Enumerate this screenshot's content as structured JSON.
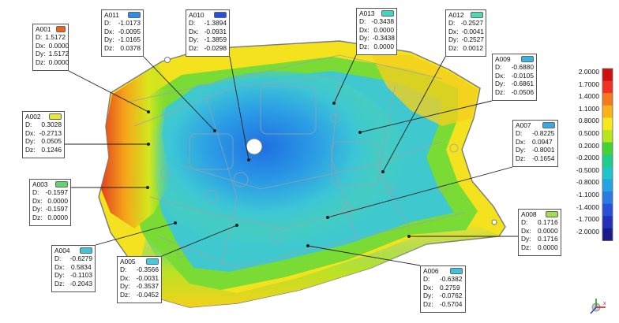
{
  "scale": {
    "labels": [
      "2.0000",
      "1.7000",
      "1.4000",
      "1.1000",
      "0.8000",
      "0.5000",
      "0.2000",
      "-0.2000",
      "-0.5000",
      "-0.8000",
      "-1.1000",
      "-1.4000",
      "-1.7000",
      "-2.0000"
    ],
    "colors": [
      "#cc1111",
      "#ee3322",
      "#f57a1f",
      "#f9b21a",
      "#f6e81a",
      "#b9e51c",
      "#44d133",
      "#1fce8a",
      "#1ec6c9",
      "#22a5e0",
      "#2a7ce3",
      "#2a4fd8",
      "#2330b8",
      "#1a1a88"
    ]
  },
  "annotations": [
    {
      "id": "A001",
      "swatch": "#e8641c",
      "values": [
        [
          "D:",
          "1.5172"
        ],
        [
          "Dx:",
          "0.0000"
        ],
        [
          "Dy:",
          "1.5172"
        ],
        [
          "Dz:",
          "0.0000"
        ]
      ]
    },
    {
      "id": "A002",
      "swatch": "#e6e832",
      "values": [
        [
          "D:",
          "0.3028"
        ],
        [
          "Dx:",
          "-0.2713"
        ],
        [
          "Dy:",
          "0.0505"
        ],
        [
          "Dz:",
          "0.1246"
        ]
      ]
    },
    {
      "id": "A003",
      "swatch": "#5ed66a",
      "values": [
        [
          "D:",
          "-0.1597"
        ],
        [
          "Dx:",
          "0.0000"
        ],
        [
          "Dy:",
          "-0.1597"
        ],
        [
          "Dz:",
          "0.0000"
        ]
      ]
    },
    {
      "id": "A004",
      "swatch": "#3bc7d8",
      "values": [
        [
          "D:",
          "-0.6279"
        ],
        [
          "Dx:",
          "0.5834"
        ],
        [
          "Dy:",
          "-0.1103"
        ],
        [
          "Dz:",
          "-0.2043"
        ]
      ]
    },
    {
      "id": "A005",
      "swatch": "#40cde0",
      "values": [
        [
          "D:",
          "-0.3566"
        ],
        [
          "Dx:",
          "-0.0031"
        ],
        [
          "Dy:",
          "-0.3537"
        ],
        [
          "Dz:",
          "-0.0452"
        ]
      ]
    },
    {
      "id": "A006",
      "swatch": "#3bc3e0",
      "values": [
        [
          "D:",
          "-0.6382"
        ],
        [
          "Dx:",
          "0.2759"
        ],
        [
          "Dy:",
          "-0.0762"
        ],
        [
          "Dz:",
          "-0.5704"
        ]
      ]
    },
    {
      "id": "A007",
      "swatch": "#3aa8e2",
      "values": [
        [
          "D:",
          "-0.8225"
        ],
        [
          "Dx:",
          "0.0947"
        ],
        [
          "Dy:",
          "-0.8001"
        ],
        [
          "Dz:",
          "-0.1654"
        ]
      ]
    },
    {
      "id": "A008",
      "swatch": "#9fe04a",
      "values": [
        [
          "D:",
          "0.1716"
        ],
        [
          "Dx:",
          "0.0000"
        ],
        [
          "Dy:",
          "0.1716"
        ],
        [
          "Dz:",
          "0.0000"
        ]
      ]
    },
    {
      "id": "A009",
      "swatch": "#3ab4e2",
      "values": [
        [
          "D:",
          "-0.6880"
        ],
        [
          "Dx:",
          "-0.0105"
        ],
        [
          "Dy:",
          "-0.6861"
        ],
        [
          "Dz:",
          "-0.0506"
        ]
      ]
    },
    {
      "id": "A010",
      "swatch": "#2a4fd8",
      "values": [
        [
          "D:",
          "-1.3894"
        ],
        [
          "Dx:",
          "-0.0931"
        ],
        [
          "Dy:",
          "-1.3859"
        ],
        [
          "Dz:",
          "-0.0298"
        ]
      ]
    },
    {
      "id": "A011",
      "swatch": "#2a8fe2",
      "values": [
        [
          "D:",
          "-1.0173"
        ],
        [
          "Dx:",
          "-0.0095"
        ],
        [
          "Dy:",
          "-1.0165"
        ],
        [
          "Dz:",
          "0.0378"
        ]
      ]
    },
    {
      "id": "A012",
      "swatch": "#4ed7b0",
      "values": [
        [
          "D:",
          "-0.2527"
        ],
        [
          "Dx:",
          "-0.0041"
        ],
        [
          "Dy:",
          "-0.2527"
        ],
        [
          "Dz:",
          "0.0012"
        ]
      ]
    },
    {
      "id": "A013",
      "swatch": "#3fd4c6",
      "values": [
        [
          "D:",
          "-0.3438"
        ],
        [
          "Dx:",
          "0.0000"
        ],
        [
          "Dy:",
          "-0.3438"
        ],
        [
          "Dz:",
          "0.0000"
        ]
      ]
    }
  ],
  "triad": {
    "axis_x": "x"
  }
}
